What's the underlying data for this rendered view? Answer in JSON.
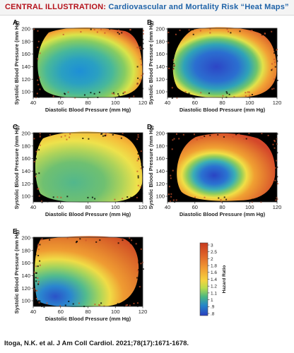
{
  "header": {
    "label": "CENTRAL ILLUSTRATION:",
    "title": "Cardiovascular and Mortality Risk “Heat Maps”"
  },
  "chart_data": {
    "type": "heatmap",
    "panels": [
      {
        "letter": "A",
        "title": "",
        "xlabel": "Diastolic Blood Pressure (mm Hg)",
        "ylabel": "Systolic Blood Pressure (mm Hg)",
        "xlim": [
          40,
          120
        ],
        "ylim": [
          90,
          200
        ],
        "xticks": [
          "40",
          "60",
          "80",
          "100",
          "120"
        ],
        "yticks": [
          "100",
          "120",
          "140",
          "160",
          "180",
          "200"
        ],
        "min_hr": 0.9,
        "center_dbp": 72,
        "center_sbp": 133
      },
      {
        "letter": "B",
        "title": "",
        "xlabel": "Diastolic Blood Pressure (mm Hg)",
        "ylabel": "Systolic Blood Pressure (mm Hg)",
        "xlim": [
          40,
          120
        ],
        "ylim": [
          90,
          200
        ],
        "xticks": [
          "40",
          "60",
          "80",
          "100",
          "120"
        ],
        "yticks": [
          "100",
          "120",
          "140",
          "160",
          "180",
          "200"
        ],
        "min_hr": 0.8,
        "center_dbp": 72,
        "center_sbp": 137
      },
      {
        "letter": "C",
        "title": "",
        "xlabel": "Diastolic Blood Pressure (mm Hg)",
        "ylabel": "Systolic Blood Pressure (mm Hg)",
        "xlim": [
          40,
          120
        ],
        "ylim": [
          90,
          200
        ],
        "xticks": [
          "40",
          "60",
          "80",
          "100",
          "120"
        ],
        "yticks": [
          "100",
          "120",
          "140",
          "160",
          "180",
          "200"
        ],
        "min_hr": 1.05,
        "center_dbp": 70,
        "center_sbp": 125
      },
      {
        "letter": "D",
        "title": "",
        "xlabel": "Diastolic Blood Pressure (mm Hg)",
        "ylabel": "Systolic Blood Pressure (mm Hg)",
        "xlim": [
          40,
          120
        ],
        "ylim": [
          90,
          200
        ],
        "xticks": [
          "40",
          "60",
          "80",
          "100",
          "120"
        ],
        "yticks": [
          "100",
          "120",
          "140",
          "160",
          "180",
          "200"
        ],
        "min_hr": 0.85,
        "center_dbp": 70,
        "center_sbp": 128
      },
      {
        "letter": "E",
        "title": "",
        "xlabel": "Diastolic Blood Pressure (mm Hg)",
        "ylabel": "Systolic Blood Pressure (mm Hg)",
        "xlim": [
          40,
          120
        ],
        "ylim": [
          90,
          200
        ],
        "xticks": [
          "40",
          "60",
          "80",
          "100",
          "120"
        ],
        "yticks": [
          "100",
          "120",
          "140",
          "160",
          "180",
          "200"
        ],
        "min_hr": 0.8,
        "center_dbp": 55,
        "center_sbp": 108
      }
    ],
    "colorbar": {
      "label": "Hazard Ratio",
      "ticks": [
        "3",
        "2.5",
        "2",
        "1.8",
        "1.6",
        "1.4",
        "1.2",
        "1.1",
        "1",
        ".9",
        ".8"
      ],
      "stops": [
        "#c73a1f",
        "#db5b22",
        "#ee8a2a",
        "#f4ad32",
        "#f7cf3c",
        "#f1e94d",
        "#b8dc4a",
        "#79c861",
        "#3fb08e",
        "#1e7dcc",
        "#2a43c2"
      ]
    }
  },
  "footer": {
    "citation": "Itoga, N.K. et al. J Am Coll Cardiol. 2021;78(17):1671-1678."
  }
}
